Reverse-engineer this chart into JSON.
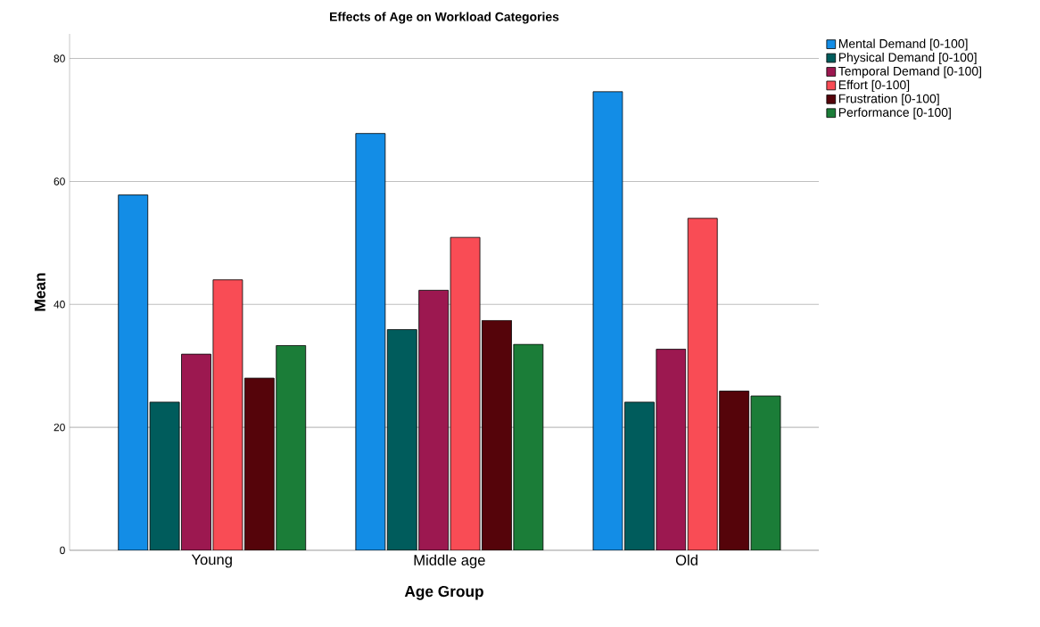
{
  "chart_data": {
    "type": "bar",
    "title": "Effects of Age on Workload Categories",
    "xlabel": "Age Group",
    "ylabel": "Mean",
    "categories": [
      "Young",
      "Middle age",
      "Old"
    ],
    "series": [
      {
        "name": "Mental Demand [0-100]",
        "color": "#138de6",
        "values": [
          57.8,
          67.8,
          74.6
        ]
      },
      {
        "name": "Physical Demand [0-100]",
        "color": "#005c5c",
        "values": [
          24.1,
          35.9,
          24.1
        ]
      },
      {
        "name": "Temporal Demand [0-100]",
        "color": "#9c1850",
        "values": [
          31.9,
          42.3,
          32.7
        ]
      },
      {
        "name": "Effort [0-100]",
        "color": "#f94c55",
        "values": [
          44.0,
          50.9,
          54.0
        ]
      },
      {
        "name": "Frustration [0-100]",
        "color": "#55040a",
        "values": [
          28.0,
          37.4,
          25.9
        ]
      },
      {
        "name": "Performance [0-100]",
        "color": "#1b7d38",
        "values": [
          33.3,
          33.5,
          25.1
        ]
      }
    ],
    "ylim": [
      0,
      84
    ],
    "yticks": [
      0,
      20,
      40,
      60,
      80
    ],
    "grid": "y",
    "legend": "top right"
  }
}
